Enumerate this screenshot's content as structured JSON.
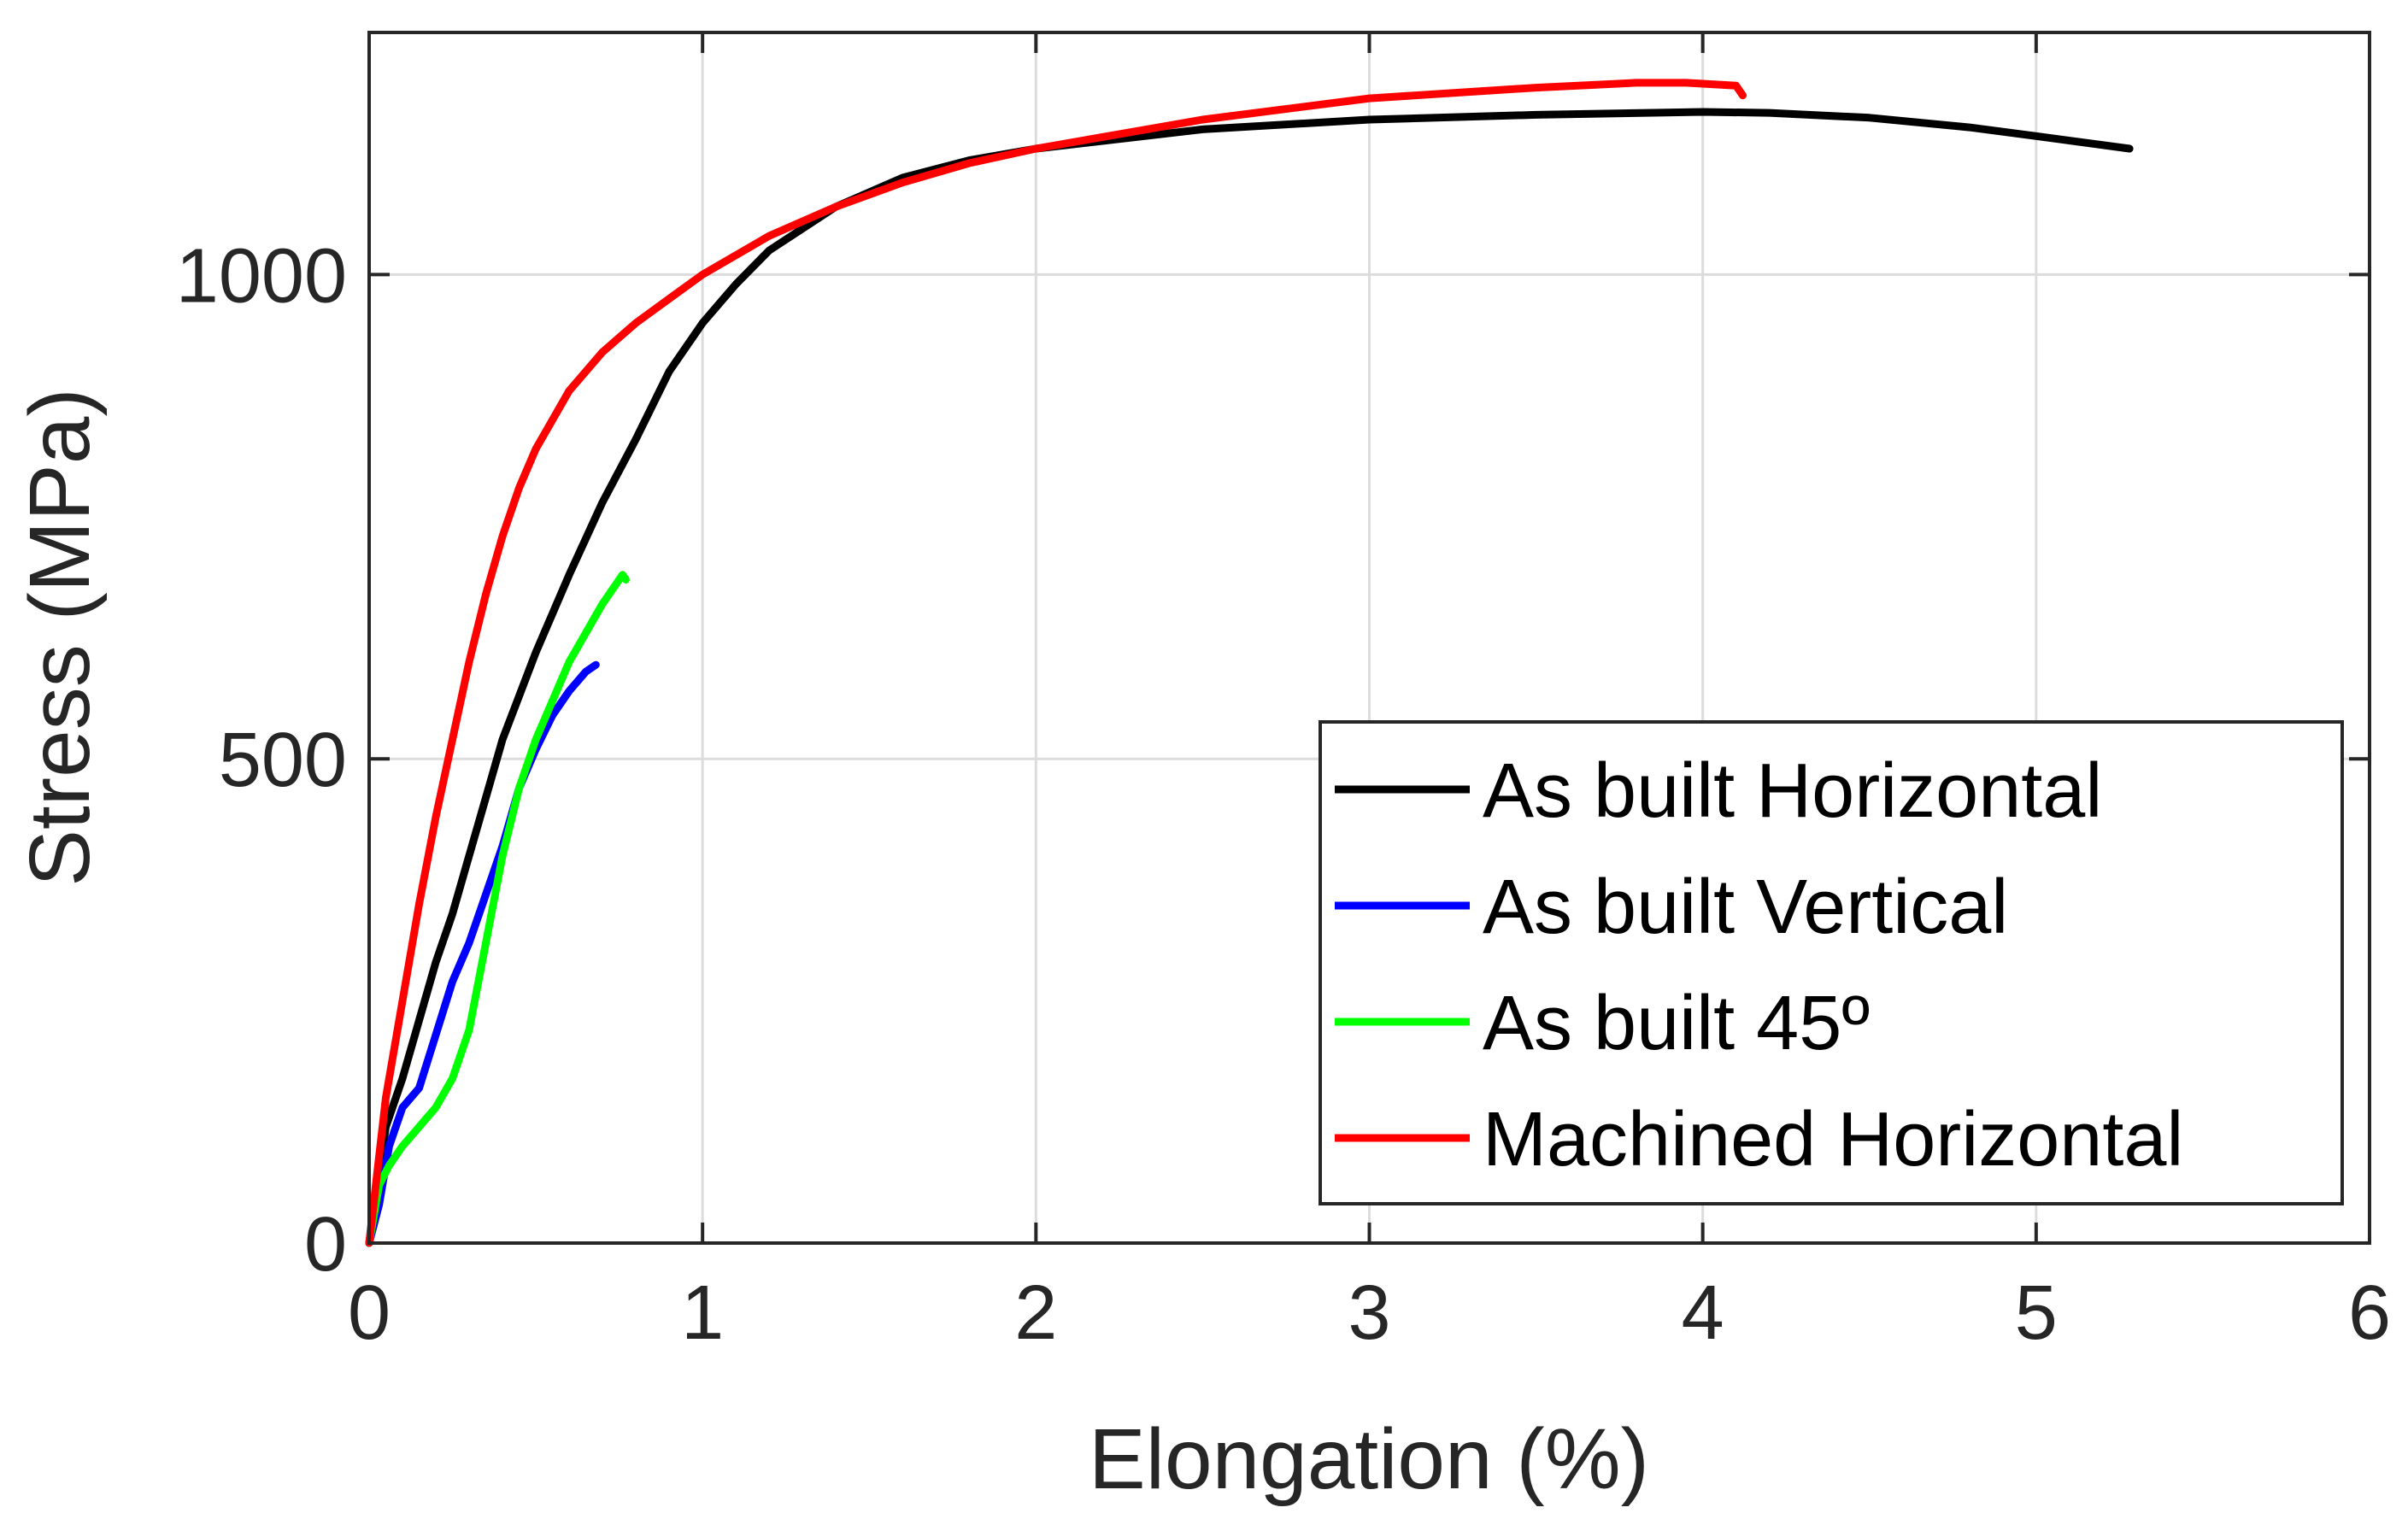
{
  "chart_data": {
    "type": "line",
    "xlabel": "Elongation (%)",
    "ylabel": "Stress (MPa)",
    "xlim": [
      0,
      6
    ],
    "ylim": [
      0,
      1250
    ],
    "xticks": [
      0,
      1,
      2,
      3,
      4,
      5,
      6
    ],
    "yticks": [
      0,
      500,
      1000
    ],
    "grid": true,
    "legend_position": "bottom-right",
    "series": [
      {
        "name": "As built Horizontal",
        "color": "#000000",
        "x": [
          0,
          0.05,
          0.1,
          0.15,
          0.2,
          0.25,
          0.3,
          0.35,
          0.4,
          0.5,
          0.6,
          0.7,
          0.8,
          0.9,
          1.0,
          1.1,
          1.2,
          1.4,
          1.6,
          1.8,
          2.0,
          2.5,
          3.0,
          3.5,
          4.0,
          4.2,
          4.5,
          4.8,
          5.0,
          5.28
        ],
        "y": [
          0,
          120,
          170,
          230,
          290,
          340,
          400,
          460,
          520,
          610,
          690,
          765,
          830,
          900,
          950,
          990,
          1025,
          1070,
          1100,
          1118,
          1130,
          1150,
          1160,
          1165,
          1168,
          1167,
          1162,
          1152,
          1143,
          1130
        ]
      },
      {
        "name": "As built Vertical",
        "color": "#0000ff",
        "x": [
          0,
          0.03,
          0.06,
          0.1,
          0.15,
          0.2,
          0.25,
          0.3,
          0.35,
          0.4,
          0.45,
          0.5,
          0.55,
          0.6,
          0.65,
          0.68
        ],
        "y": [
          0,
          40,
          100,
          140,
          160,
          215,
          270,
          310,
          360,
          410,
          470,
          510,
          545,
          570,
          590,
          597
        ]
      },
      {
        "name": "As built 45º",
        "color": "#00ff00",
        "x": [
          0,
          0.03,
          0.06,
          0.1,
          0.15,
          0.2,
          0.25,
          0.3,
          0.35,
          0.4,
          0.45,
          0.5,
          0.55,
          0.6,
          0.65,
          0.7,
          0.73,
          0.76,
          0.77
        ],
        "y": [
          0,
          60,
          80,
          100,
          120,
          140,
          170,
          220,
          310,
          400,
          470,
          520,
          560,
          600,
          630,
          660,
          675,
          690,
          685
        ]
      },
      {
        "name": "Machined Horizontal",
        "color": "#ff0000",
        "x": [
          0,
          0.05,
          0.1,
          0.15,
          0.2,
          0.25,
          0.3,
          0.35,
          0.4,
          0.45,
          0.5,
          0.6,
          0.7,
          0.8,
          0.9,
          1.0,
          1.2,
          1.4,
          1.6,
          1.8,
          2.0,
          2.5,
          3.0,
          3.5,
          3.8,
          3.95,
          4.1,
          4.12
        ],
        "y": [
          0,
          150,
          250,
          350,
          440,
          520,
          600,
          670,
          730,
          780,
          820,
          880,
          920,
          950,
          975,
          1000,
          1040,
          1070,
          1095,
          1115,
          1130,
          1160,
          1182,
          1193,
          1198,
          1198,
          1195,
          1185
        ]
      }
    ]
  }
}
